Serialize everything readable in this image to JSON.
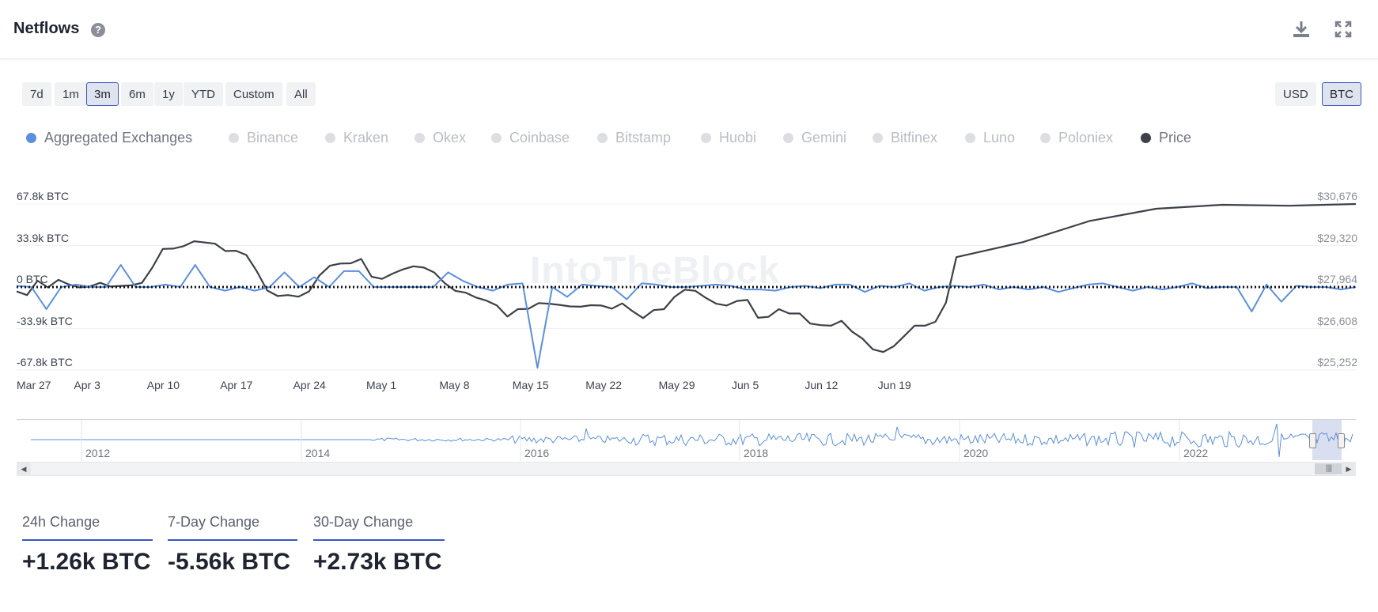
{
  "header": {
    "title": "Netflows",
    "help_icon": "help-icon",
    "download_icon": "download-icon",
    "expand_icon": "expand-icon"
  },
  "ranges": [
    "7d",
    "1m",
    "3m",
    "6m",
    "1y",
    "YTD",
    "Custom",
    "All"
  ],
  "active_range": "3m",
  "currency": {
    "options": [
      "USD",
      "BTC"
    ],
    "active": "BTC"
  },
  "legend": [
    {
      "label": "Aggregated Exchanges",
      "color": "#5b8fde",
      "active": true
    },
    {
      "label": "Binance",
      "active": false
    },
    {
      "label": "Kraken",
      "active": false
    },
    {
      "label": "Okex",
      "active": false
    },
    {
      "label": "Coinbase",
      "active": false
    },
    {
      "label": "Bitstamp",
      "active": false
    },
    {
      "label": "Huobi",
      "active": false
    },
    {
      "label": "Gemini",
      "active": false
    },
    {
      "label": "Bitfinex",
      "active": false
    },
    {
      "label": "Luno",
      "active": false
    },
    {
      "label": "Poloniex",
      "active": false
    },
    {
      "label": "Price",
      "color": "#3d4148",
      "active": true
    }
  ],
  "watermark": "IntoTheBlock",
  "chart_data": {
    "type": "line",
    "title": "Netflows",
    "y_left_ticks": [
      "67.8k BTC",
      "33.9k BTC",
      "0 BTC",
      "-33.9k BTC",
      "-67.8k BTC"
    ],
    "y_left_range": [
      -67.8,
      67.8
    ],
    "y_left_unit": "k BTC",
    "y_right_ticks": [
      "$30,676",
      "$29,320",
      "$27,964",
      "$26,608",
      "$25,252"
    ],
    "y_right_range": [
      25252,
      30676
    ],
    "x_ticks": [
      "Mar 27",
      "Apr 3",
      "Apr 10",
      "Apr 17",
      "Apr 24",
      "May 1",
      "May 8",
      "May 15",
      "May 22",
      "May 29",
      "Jun 5",
      "Jun 12",
      "Jun 19"
    ],
    "x_start": "Mar 27",
    "x_days": 91,
    "series": [
      {
        "name": "Aggregated Exchanges",
        "axis": "left",
        "color": "#5b8fde",
        "values": [
          1,
          0,
          -18,
          0,
          2,
          0,
          0,
          18,
          0,
          0,
          2,
          0,
          18,
          0,
          -3,
          0,
          -3,
          0,
          12,
          0,
          8,
          0,
          13,
          13,
          0,
          0,
          0,
          0,
          0,
          12,
          5,
          0,
          -3,
          2,
          3,
          -66,
          0,
          -8,
          2,
          1,
          0,
          -10,
          3,
          2,
          0,
          0,
          1,
          2,
          1,
          -2,
          -2,
          -3,
          0,
          1,
          -1,
          2,
          2,
          -4,
          1,
          0,
          3,
          -3,
          0,
          1,
          0,
          2,
          -2,
          0,
          -2,
          0,
          -4,
          -1,
          2,
          3,
          0,
          -3,
          0,
          -2,
          0,
          3,
          -1,
          0,
          0,
          -20,
          2,
          -12,
          1,
          0,
          0,
          -2,
          0
        ]
      },
      {
        "name": "Price",
        "axis": "right",
        "color": "#3d4148",
        "values": [
          27820,
          27700,
          28170,
          27950,
          28200,
          28050,
          27950,
          27980,
          28100,
          27980,
          28000,
          28020,
          28100,
          28600,
          29210,
          29220,
          29300,
          29460,
          29420,
          29380,
          29140,
          29150,
          29010,
          28480,
          27850,
          27670,
          27700,
          27650,
          27820,
          28340,
          28660,
          28730,
          28740,
          28880,
          28300,
          28230,
          28400,
          28540,
          28640,
          28600,
          28440,
          28090,
          27840,
          27780,
          27620,
          27520,
          27360,
          27000,
          27240,
          27250,
          27440,
          27420,
          27380,
          27330,
          27320,
          27370,
          27360,
          27260,
          27430,
          27170,
          26950,
          27210,
          27240,
          27640,
          27880,
          27840,
          27610,
          27420,
          27360,
          27510,
          27540,
          26960,
          26990,
          27240,
          27100,
          27100,
          26770,
          26720,
          26700,
          26860,
          26510,
          26280,
          25930,
          25840,
          26030,
          26360,
          26700,
          26700,
          26830,
          27450,
          28940
        ]
      }
    ],
    "price_tail": [
      29430,
      30120,
      30520,
      30650,
      30620,
      30676
    ],
    "navigator_years": [
      "2012",
      "2014",
      "2016",
      "2018",
      "2020",
      "2022"
    ]
  },
  "stats": [
    {
      "tab": "24h Change",
      "value": "+1.26k BTC"
    },
    {
      "tab": "7-Day Change",
      "value": "-5.56k BTC"
    },
    {
      "tab": "30-Day Change",
      "value": "+2.73k BTC"
    }
  ]
}
